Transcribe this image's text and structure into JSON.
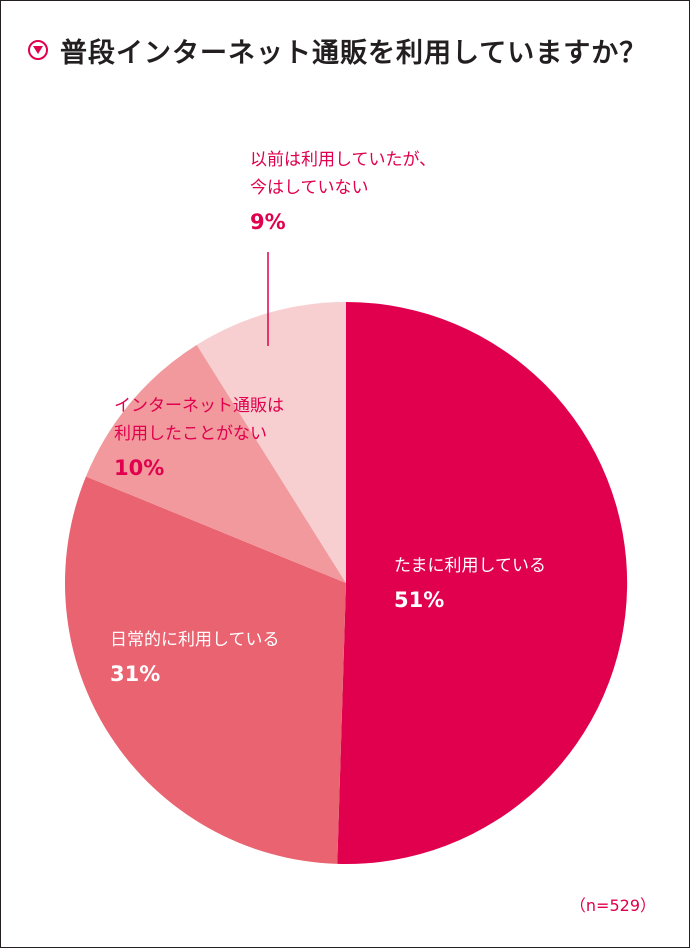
{
  "title": "普段インターネット通販を利用していますか？",
  "note": "（n=529）",
  "colors": {
    "accent": "#e0004d",
    "slice_tamani": "#e0004d",
    "slice_nichijo": "#e96371",
    "slice_nashi": "#f1999d",
    "slice_izen": "#f7cfd0"
  },
  "chart_data": {
    "type": "pie",
    "start": "12 o'clock, clockwise",
    "slices": [
      {
        "label_lines": [
          "たまに利用している"
        ],
        "pct_text": "51%",
        "value": 51,
        "color": "#e0004d"
      },
      {
        "label_lines": [
          "日常的に利用している"
        ],
        "pct_text": "31%",
        "value": 31,
        "color": "#e96371"
      },
      {
        "label_lines": [
          "インターネット通販は",
          "利用したことがない"
        ],
        "pct_text": "10%",
        "value": 10,
        "color": "#f1999d"
      },
      {
        "label_lines": [
          "以前は利用していたが、",
          "今はしていない"
        ],
        "pct_text": "9%",
        "value": 9,
        "color": "#f7cfd0"
      }
    ]
  }
}
